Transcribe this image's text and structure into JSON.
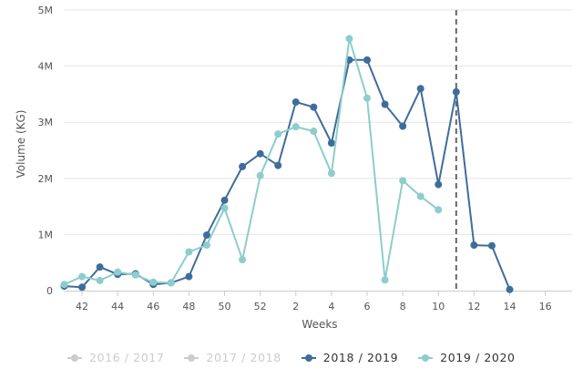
{
  "chart_data": {
    "type": "line",
    "title": "",
    "xlabel": "Weeks",
    "ylabel": "Volume (KG)",
    "ylim": [
      0,
      5000000
    ],
    "y_ticks": [
      {
        "value": 0,
        "label": "0"
      },
      {
        "value": 1000000,
        "label": "1M"
      },
      {
        "value": 2000000,
        "label": "2M"
      },
      {
        "value": 3000000,
        "label": "3M"
      },
      {
        "value": 4000000,
        "label": "4M"
      },
      {
        "value": 5000000,
        "label": "5M"
      }
    ],
    "x_ticks": [
      "42",
      "44",
      "46",
      "48",
      "50",
      "52",
      "2",
      "4",
      "6",
      "8",
      "10",
      "12",
      "14",
      "16"
    ],
    "x_tick_index": [
      1,
      3,
      5,
      7,
      9,
      11,
      13,
      15,
      17,
      19,
      21,
      23,
      25,
      27
    ],
    "x_range_index": [
      0,
      28
    ],
    "current_week_marker_index": 22,
    "series": [
      {
        "name": "2018 / 2019",
        "color": "#3f6d9b",
        "x_index": [
          0,
          1,
          2,
          3,
          4,
          5,
          6,
          7,
          8,
          9,
          10,
          11,
          12,
          13,
          14,
          15,
          16,
          17,
          18,
          19,
          20,
          21,
          22,
          23,
          24,
          25
        ],
        "values": [
          80000,
          60000,
          420000,
          290000,
          300000,
          110000,
          140000,
          250000,
          990000,
          1610000,
          2210000,
          2440000,
          2230000,
          3360000,
          3270000,
          2630000,
          4110000,
          4110000,
          3320000,
          2930000,
          3600000,
          1890000,
          3540000,
          810000,
          800000,
          20000
        ]
      },
      {
        "name": "2019 / 2020",
        "color": "#8dcdcd",
        "x_index": [
          0,
          1,
          2,
          3,
          4,
          5,
          6,
          7,
          8,
          9,
          10,
          11,
          12,
          13,
          14,
          15,
          16,
          17,
          18,
          19,
          20,
          21
        ],
        "values": [
          110000,
          250000,
          180000,
          330000,
          280000,
          150000,
          140000,
          690000,
          810000,
          1470000,
          550000,
          2050000,
          2790000,
          2920000,
          2840000,
          2090000,
          4490000,
          3430000,
          190000,
          1960000,
          1680000,
          1440000
        ]
      }
    ],
    "legend": [
      {
        "label": "2016 / 2017",
        "color": "#cccccc",
        "active": false
      },
      {
        "label": "2017 / 2018",
        "color": "#cccccc",
        "active": false
      },
      {
        "label": "2018 / 2019",
        "color": "#3f6d9b",
        "active": true
      },
      {
        "label": "2019 / 2020",
        "color": "#8dcdcd",
        "active": true
      }
    ]
  }
}
